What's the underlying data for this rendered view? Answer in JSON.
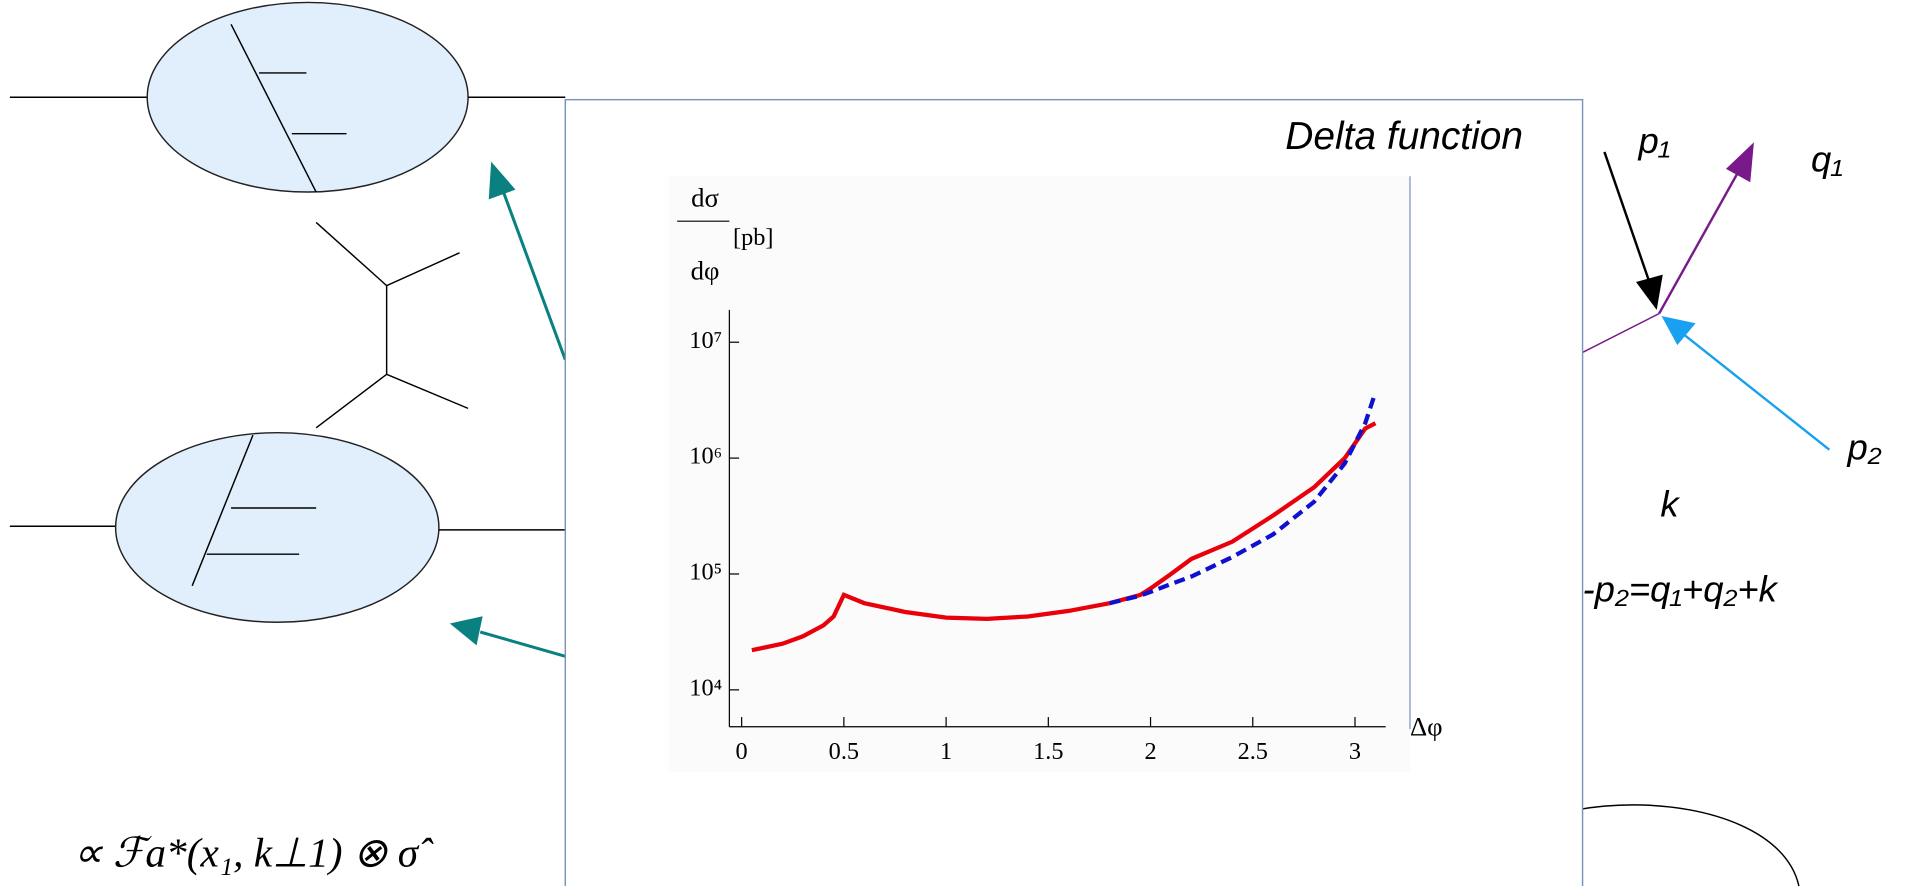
{
  "chart_data": {
    "type": "line",
    "title": "Delta function",
    "ylabel_numerator": "dσ",
    "ylabel_denominator": "dφ",
    "ylabel_unit": "[pb]",
    "xlabel": "Δφ",
    "log_y": true,
    "x": [
      0.05,
      0.2,
      0.3,
      0.4,
      0.45,
      0.5,
      0.6,
      0.8,
      1.0,
      1.2,
      1.4,
      1.6,
      1.8,
      1.95,
      2.0,
      2.1,
      2.2,
      2.4,
      2.6,
      2.8,
      2.95,
      3.05,
      3.1
    ],
    "series": [
      {
        "color": "#e8000b",
        "dash": false,
        "values": [
          22000,
          25000,
          29000,
          36000,
          43000,
          66000,
          56000,
          47000,
          42000,
          41000,
          43000,
          48000,
          56000,
          66000,
          75000,
          100000,
          135000,
          190000,
          320000,
          560000,
          1000000,
          1800000,
          2000000
        ]
      },
      {
        "color": "#1010d0",
        "dash": true,
        "values": [
          null,
          null,
          null,
          null,
          null,
          null,
          null,
          null,
          null,
          null,
          null,
          null,
          56000,
          65000,
          70000,
          82000,
          95000,
          140000,
          220000,
          420000,
          900000,
          2000000,
          3700000
        ]
      }
    ],
    "xlim": [
      -0.06,
      3.15
    ],
    "xticks": [
      0,
      0.5,
      1,
      1.5,
      2,
      2.5,
      3
    ],
    "ylim": [
      4800,
      19000000
    ],
    "yticks": [
      {
        "value": 10000,
        "label": "10⁴"
      },
      {
        "value": 100000,
        "label": "10⁵"
      },
      {
        "value": 1000000,
        "label": "10⁶"
      },
      {
        "value": 10000000,
        "label": "10⁷"
      }
    ]
  },
  "slide": {
    "p1": "p₁",
    "q1": "q₁",
    "p2": "p₂",
    "k": "k",
    "conservation": "-p₂=q₁+q₂+k",
    "formula": "∝ ℱa*(x₁, k⊥1) ⊗ σ̂"
  }
}
